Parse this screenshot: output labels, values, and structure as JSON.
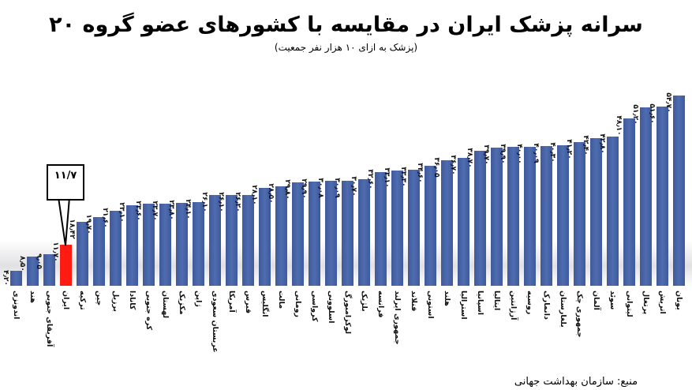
{
  "header": {
    "title": "سرانه پزشک ایران در مقایسه با کشورهای عضو گروه ۲۰",
    "subtitle": "(پزشک به ازای ۱۰ هزار نفر جمعیت)"
  },
  "callout": {
    "label": "۱۱/۷",
    "target_country": "ایران"
  },
  "footer": {
    "source": "منبع: سازمان بهداشت جهانی"
  },
  "colors": {
    "bar": "#4a66aa",
    "highlight": "#ff1a12",
    "background": "#ffffff"
  },
  "chart_data": {
    "type": "bar",
    "title": "سرانه پزشک ایران در مقایسه با کشورهای عضو گروه ۲۰",
    "subtitle": "(پزشک به ازای ۱۰ هزار نفر جمعیت)",
    "xlabel": "",
    "ylabel": "پزشک به ازای ۱۰ هزار نفر جمعیت",
    "ylim": [
      0,
      55
    ],
    "grid": false,
    "legend": null,
    "highlight_category": "ایران",
    "annotation": "۱۱/۷",
    "source": "منبع: سازمان بهداشت جهانی",
    "categories": [
      "اندونزی",
      "هند",
      "آفریقای جنوبی",
      "ایران",
      "ترکیه",
      "چین",
      "برزیل",
      "کانادا",
      "کره جنوبی",
      "لهستان",
      "مکزیک",
      "ژاپن",
      "عربستان سعودی",
      "آمریکا",
      "قبرس",
      "انگلیس",
      "مالت",
      "رومانی",
      "کرواسی",
      "اسلوونی",
      "لوکزامبورگ",
      "بلژیک",
      "فرانسه",
      "جمهوری ایرلند",
      "فنلاند",
      "استونی",
      "هلند",
      "استرالیا",
      "اسپانیا",
      "ایتالیا",
      "آرژانتین",
      "روسیه",
      "دانمارک",
      "بلغارستان",
      "جمهوری چک",
      "آلمان",
      "سوئد",
      "لیتوانی",
      "پرتغال",
      "اتریش",
      "یونان"
    ],
    "values": [
      4.2,
      8.5,
      9.05,
      11.7,
      18.42,
      19.7,
      21.6,
      23.1,
      23.6,
      23.7,
      23.8,
      24.1,
      26.1,
      26.1,
      26.2,
      28.1,
      28.5,
      29.8,
      29.9,
      30.08,
      30.09,
      30.7,
      32.6,
      33.1,
      33.3,
      34.6,
      36.05,
      36.7,
      38.7,
      39.7,
      39.9,
      40.0,
      40.09,
      40.3,
      41.2,
      42.4,
      42.8,
      48.1,
      51.2,
      51.6,
      54.7
    ],
    "value_labels": [
      "۴٫۲۰",
      "۸٫۵۰",
      "۹٫۰۵",
      "۱۱٫۷۰",
      "۱۸٫۴۲",
      "۱۹٫۷۰",
      "۲۱٫۶۰",
      "۲۳٫۱۰",
      "۲۳٫۶۰",
      "۲۳٫۷۰",
      "۲۳٫۸۰",
      "۲۴٫۱۰",
      "۲۶٫۱۰",
      "۲۶٫۱۰",
      "۲۶٫۲۰",
      "۲۸٫۱۰",
      "۲۸٫۵۰",
      "۲۹٫۸۰",
      "۲۹٫۹۰",
      "۳۰٫۰۸",
      "۳۰٫۰۹",
      "۳۰٫۷۰",
      "۳۲٫۶۰",
      "۳۳٫۱۰",
      "۳۳٫۳۰",
      "۳۴٫۶۰",
      "۳۶٫۰۵",
      "۳۶٫۷۰",
      "۳۸٫۷۰",
      "۳۹٫۷۰",
      "۳۹٫۹۰",
      "۴۰٫۰۰",
      "۴۰٫۰۹",
      "۴۰٫۳۰",
      "۴۱٫۲۰",
      "۴۲٫۴۰",
      "۴۲٫۸۰",
      "۴۸٫۱۰",
      "۵۱٫۲۰",
      "۵۱٫۶۰",
      "۵۴٫۷۰"
    ]
  }
}
